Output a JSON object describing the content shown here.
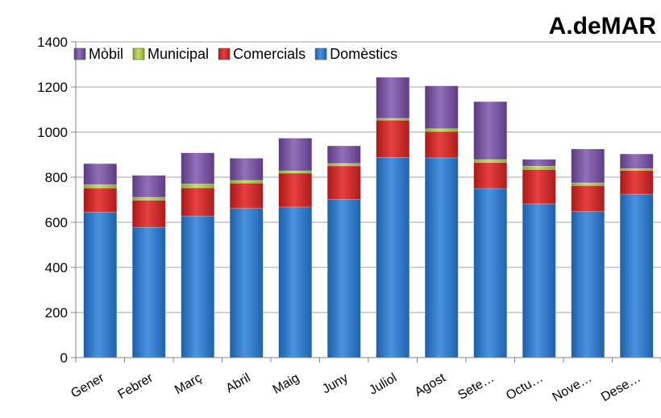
{
  "chart_data": {
    "type": "bar",
    "stacked": true,
    "title": "A.deMAR",
    "categories": [
      "Gener",
      "Febrer",
      "Març",
      "Abril",
      "Maig",
      "Juny",
      "Juliol",
      "Agost",
      "Sete…",
      "Octu…",
      "Nove…",
      "Dese…"
    ],
    "series": [
      {
        "name": "Domèstics",
        "color": "#2f78c8",
        "values": [
          645,
          578,
          628,
          662,
          668,
          702,
          888,
          886,
          750,
          682,
          648,
          725
        ]
      },
      {
        "name": "Comercials",
        "color": "#d32a2a",
        "values": [
          107,
          120,
          125,
          112,
          150,
          148,
          165,
          117,
          115,
          152,
          115,
          105
        ]
      },
      {
        "name": "Municipal",
        "color": "#a9cf46",
        "values": [
          15,
          13,
          17,
          12,
          10,
          11,
          8,
          12,
          13,
          15,
          12,
          8
        ]
      },
      {
        "name": "Mòbil",
        "color": "#7b55a0",
        "values": [
          93,
          97,
          138,
          98,
          145,
          78,
          182,
          190,
          257,
          30,
          150,
          65
        ]
      }
    ],
    "legend_order": [
      "Mòbil",
      "Municipal",
      "Comercials",
      "Domèstics"
    ],
    "ylim": [
      0,
      1400
    ],
    "yticks": [
      0,
      200,
      400,
      600,
      800,
      1000,
      1200,
      1400
    ],
    "grid": true,
    "legend_position": "top-left"
  }
}
